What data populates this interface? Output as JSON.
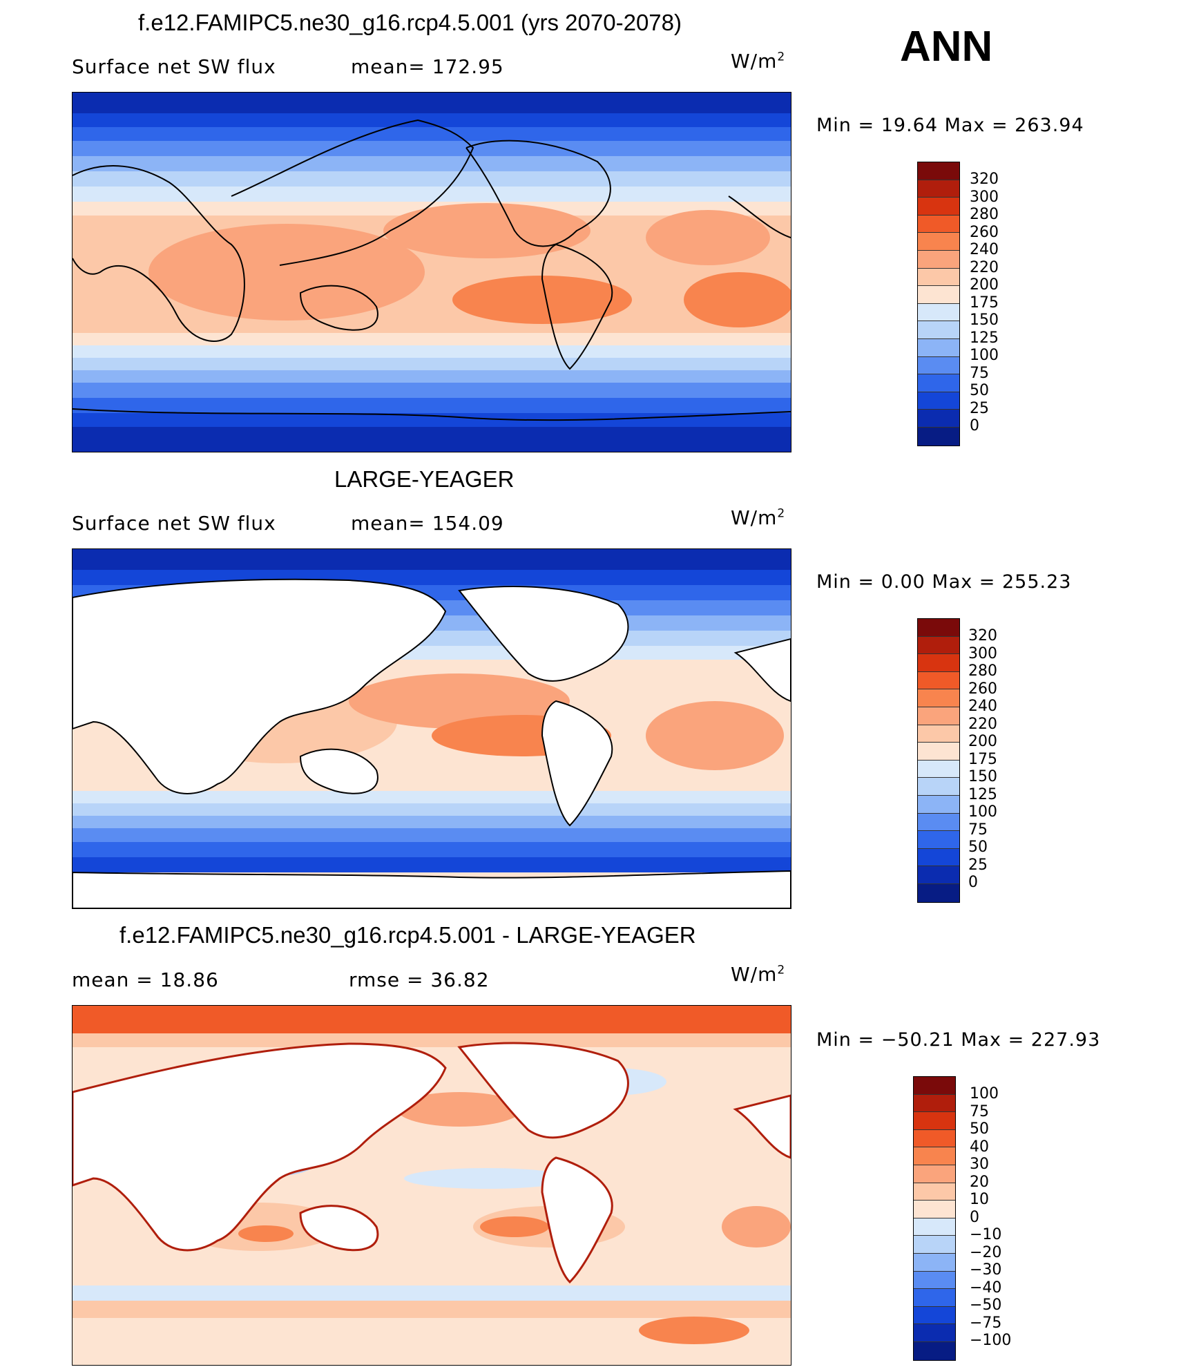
{
  "season": "ANN",
  "units": {
    "base": "W/m",
    "exp": "2"
  },
  "panel1": {
    "title": "f.e12.FAMIPC5.ne30_g16.rcp4.5.001 (yrs 2070-2078)",
    "var": "Surface net SW flux",
    "mean": "mean=  172.95",
    "minmax": "Min  =    19.64  Max  =  263.94"
  },
  "panel2": {
    "title": "LARGE-YEAGER",
    "var": "Surface net SW flux",
    "mean": "mean=  154.09",
    "minmax": "Min  =      0.00  Max  =  255.23"
  },
  "panel3": {
    "title": "f.e12.FAMIPC5.ne30_g16.rcp4.5.001 - LARGE-YEAGER",
    "mean": "mean  =    18.86",
    "rmse": "rmse  =    36.82",
    "minmax": "Min  = −50.21  Max  =  227.93"
  },
  "colorbar_main": {
    "labels": [
      "320",
      "300",
      "280",
      "260",
      "240",
      "220",
      "200",
      "175",
      "150",
      "125",
      "100",
      "75",
      "50",
      "25",
      "0"
    ],
    "colors": [
      "#7a0a0a",
      "#b01e0c",
      "#d83410",
      "#f05a28",
      "#f8844e",
      "#faa47c",
      "#fcc8a8",
      "#fde4d2",
      "#d7e8fa",
      "#b8d4f8",
      "#8cb4f6",
      "#5a8cf2",
      "#2f66ea",
      "#1446d8",
      "#0b2cb0",
      "#071c84"
    ]
  },
  "colorbar_diff": {
    "labels": [
      "100",
      "75",
      "50",
      "40",
      "30",
      "20",
      "10",
      "0",
      "−10",
      "−20",
      "−30",
      "−40",
      "−50",
      "−75",
      "−100"
    ],
    "colors": [
      "#7a0a0a",
      "#b01e0c",
      "#d83410",
      "#f05a28",
      "#f8844e",
      "#faa47c",
      "#fcc8a8",
      "#fde4d2",
      "#d7e8fa",
      "#b8d4f8",
      "#8cb4f6",
      "#5a8cf2",
      "#2f66ea",
      "#1446d8",
      "#0b2cb0",
      "#071c84"
    ]
  }
}
